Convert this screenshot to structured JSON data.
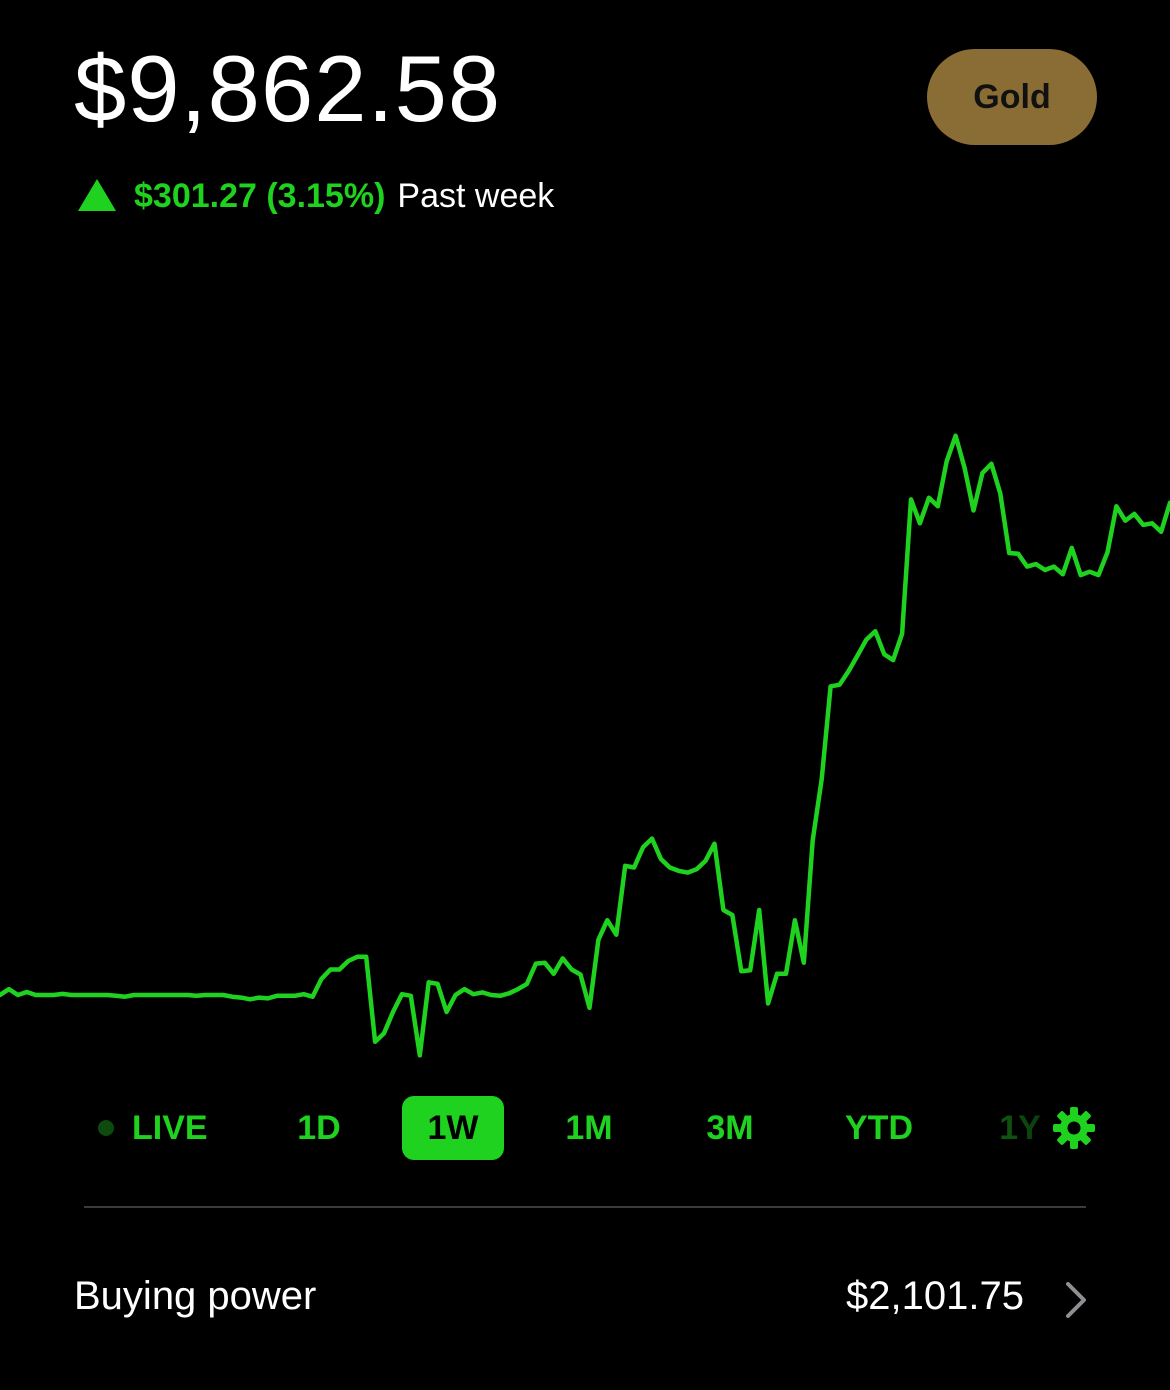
{
  "header": {
    "balance": "$9,862.58",
    "gold_label": "Gold",
    "gold_color": "#8a6d35"
  },
  "change": {
    "direction_icon": "up-triangle-icon",
    "amount": "$301.27 (3.15%)",
    "period": "Past week",
    "color": "#1fd21f"
  },
  "chart_data": {
    "type": "line",
    "title": "",
    "xlabel": "",
    "ylabel": "",
    "grid": false,
    "legend": "none",
    "color": "#1fd21f",
    "series": [
      {
        "values": [
          9530.0,
          9532.8,
          9530.0,
          9531.4,
          9530.0,
          9530.0,
          9530.0,
          9530.5,
          9530.0,
          9530.0,
          9530.0,
          9530.0,
          9530.0,
          9529.6,
          9529.2,
          9530.0,
          9530.0,
          9530.0,
          9530.0,
          9530.0,
          9530.0,
          9530.0,
          9529.6,
          9530.0,
          9530.0,
          9530.0,
          9529.2,
          9528.8,
          9528.0,
          9528.8,
          9528.4,
          9529.6,
          9529.6,
          9529.6,
          9530.4,
          9529.2,
          9537.6,
          9542.0,
          9542.0,
          9546.0,
          9548.0,
          9548.0,
          9508.0,
          9512.0,
          9522.0,
          9530.4,
          9529.6,
          9501.6,
          9536.0,
          9535.2,
          9522.0,
          9530.0,
          9532.8,
          9530.4,
          9531.2,
          9530.0,
          9529.6,
          9530.8,
          9532.8,
          9535.2,
          9544.8,
          9545.2,
          9540.0,
          9547.2,
          9542.0,
          9539.6,
          9524.0,
          9556.0,
          9565.2,
          9558.4,
          9590.8,
          9590.0,
          9599.6,
          9603.6,
          9594.0,
          9590.0,
          9588.4,
          9587.6,
          9589.2,
          9593.2,
          9601.2,
          9570.0,
          9567.6,
          9541.2,
          9541.6,
          9570.0,
          9526.0,
          9540.0,
          9540.0,
          9565.2,
          9545.2,
          9602.8,
          9631.6,
          9675.2,
          9676.0,
          9682.4,
          9689.6,
          9697.2,
          9701.2,
          9690.4,
          9687.6,
          9700.0,
          9763.2,
          9752.0,
          9764.0,
          9760.0,
          9781.2,
          9793.2,
          9778.0,
          9758.0,
          9775.6,
          9780.0,
          9766.0,
          9738.0,
          9737.6,
          9731.6,
          9732.8,
          9730.0,
          9731.6,
          9728.0,
          9740.4,
          9727.6,
          9729.2,
          9727.6,
          9738.4,
          9760.0,
          9753.2,
          9756.4,
          9751.2,
          9752.0,
          9748.0,
          9761.6
        ]
      }
    ],
    "selected_range": "1W"
  },
  "ranges": {
    "live": "LIVE",
    "d1": "1D",
    "w1": "1W",
    "m1": "1M",
    "m3": "3M",
    "ytd": "YTD",
    "y1": "1Y"
  },
  "buying_power": {
    "label": "Buying power",
    "value": "$2,101.75"
  },
  "icons": {
    "settings": "gear-icon",
    "chevron": "chevron-right-icon"
  }
}
